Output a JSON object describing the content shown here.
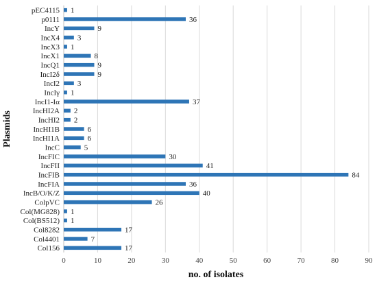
{
  "chart_data": {
    "type": "bar",
    "orientation": "horizontal",
    "xlabel": "no. of isolates",
    "ylabel": "Plasmids",
    "xlim": [
      0,
      90
    ],
    "xticks": [
      0,
      10,
      20,
      30,
      40,
      50,
      60,
      70,
      80,
      90
    ],
    "grid": "vertical",
    "bar_color": "#2e75b6",
    "categories": [
      "pEC4115",
      "p0111",
      "IncY",
      "IncX4",
      "IncX3",
      "IncX1",
      "IncQ1",
      "IncI2δ",
      "IncI2",
      "IncIγ",
      "IncI1-Iα",
      "IncHI2A",
      "IncHI2",
      "IncHI1B",
      "IncHI1A",
      "IncC",
      "IncFIC",
      "IncFII",
      "IncFIB",
      "IncFIA",
      "IncB/O/K/Z",
      "ColpVC",
      "Col(MG828)",
      "Col(BS512)",
      "Col8282",
      "Col4401",
      "Col156"
    ],
    "values": [
      1,
      36,
      9,
      3,
      1,
      8,
      9,
      9,
      3,
      1,
      37,
      2,
      2,
      6,
      6,
      5,
      30,
      41,
      84,
      36,
      40,
      26,
      1,
      1,
      17,
      7,
      17
    ]
  }
}
